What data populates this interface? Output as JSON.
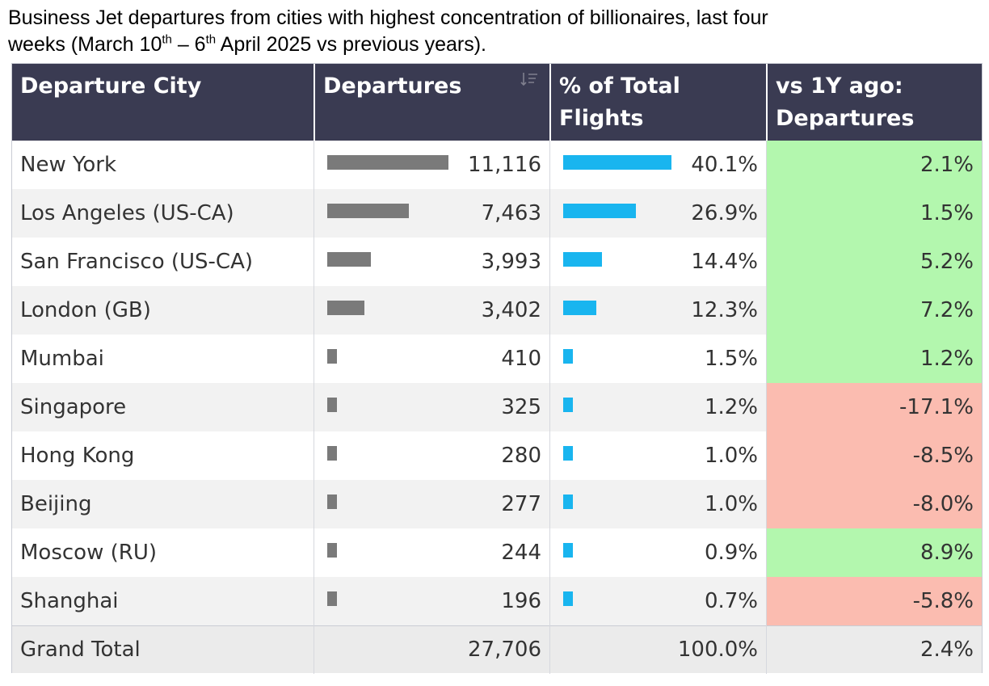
{
  "title": {
    "line1": "Business Jet departures from cities with highest concentration of billionaires, last four",
    "line2_a": "weeks (March 10",
    "sup1": "th",
    "line2_b": " – 6",
    "sup2": "th",
    "line2_c": " April 2025 vs previous years)."
  },
  "colors": {
    "header_bg": "#3a3b52",
    "departures_bar": "#7a7a7a",
    "share_bar": "#19b5ef",
    "positive_cell": "#b3f7ae",
    "negative_cell": "#fbbcb0",
    "row_alt": "#f2f2f2",
    "total_bg": "#ebebeb"
  },
  "chart_data": {
    "type": "table",
    "columns": [
      "Departure City",
      "Departures",
      "% of Total Flights",
      "vs 1Y ago: Departures"
    ],
    "header_lines": {
      "c0": [
        "Departure City"
      ],
      "c1": [
        "Departures"
      ],
      "c2": [
        "% of Total",
        "Flights"
      ],
      "c3": [
        "vs 1Y ago:",
        "Departures"
      ]
    },
    "rows": [
      {
        "city": "New York",
        "departures": 11116,
        "departures_label": "11,116",
        "share": 40.1,
        "share_label": "40.1%",
        "yoy": 2.1,
        "yoy_label": "2.1%"
      },
      {
        "city": "Los Angeles (US-CA)",
        "departures": 7463,
        "departures_label": "7,463",
        "share": 26.9,
        "share_label": "26.9%",
        "yoy": 1.5,
        "yoy_label": "1.5%"
      },
      {
        "city": "San Francisco (US-CA)",
        "departures": 3993,
        "departures_label": "3,993",
        "share": 14.4,
        "share_label": "14.4%",
        "yoy": 5.2,
        "yoy_label": "5.2%"
      },
      {
        "city": "London (GB)",
        "departures": 3402,
        "departures_label": "3,402",
        "share": 12.3,
        "share_label": "12.3%",
        "yoy": 7.2,
        "yoy_label": "7.2%"
      },
      {
        "city": "Mumbai",
        "departures": 410,
        "departures_label": "410",
        "share": 1.5,
        "share_label": "1.5%",
        "yoy": 1.2,
        "yoy_label": "1.2%"
      },
      {
        "city": "Singapore",
        "departures": 325,
        "departures_label": "325",
        "share": 1.2,
        "share_label": "1.2%",
        "yoy": -17.1,
        "yoy_label": "-17.1%"
      },
      {
        "city": "Hong Kong",
        "departures": 280,
        "departures_label": "280",
        "share": 1.0,
        "share_label": "1.0%",
        "yoy": -8.5,
        "yoy_label": "-8.5%"
      },
      {
        "city": "Beijing",
        "departures": 277,
        "departures_label": "277",
        "share": 1.0,
        "share_label": "1.0%",
        "yoy": -8.0,
        "yoy_label": "-8.0%"
      },
      {
        "city": "Moscow (RU)",
        "departures": 244,
        "departures_label": "244",
        "share": 0.9,
        "share_label": "0.9%",
        "yoy": 8.9,
        "yoy_label": "8.9%"
      },
      {
        "city": "Shanghai",
        "departures": 196,
        "departures_label": "196",
        "share": 0.7,
        "share_label": "0.7%",
        "yoy": -5.8,
        "yoy_label": "-5.8%"
      }
    ],
    "total": {
      "label": "Grand Total",
      "departures_label": "27,706",
      "share_label": "100.0%",
      "yoy_label": "2.4%"
    },
    "departures_bar_max": 11116,
    "share_bar_max": 40.1
  }
}
